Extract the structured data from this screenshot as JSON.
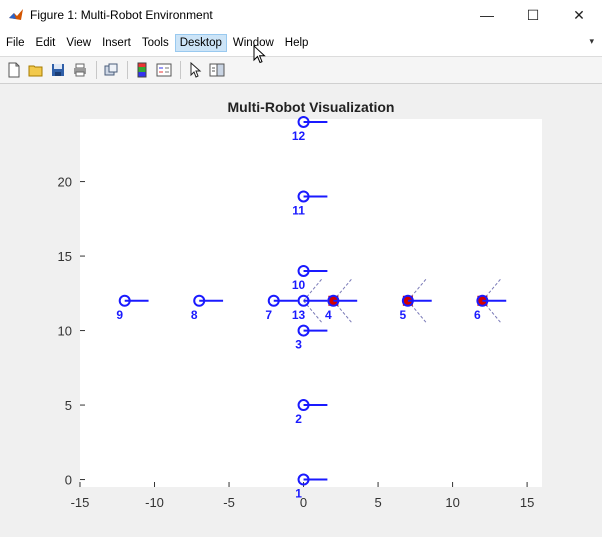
{
  "window": {
    "title": "Figure 1: Multi-Robot Environment",
    "controls": {
      "minimize": "—",
      "maximize": "☐",
      "close": "✕"
    }
  },
  "menu": {
    "items": [
      "File",
      "Edit",
      "View",
      "Insert",
      "Tools",
      "Desktop",
      "Window",
      "Help"
    ],
    "active": "Desktop",
    "overflow": "▾"
  },
  "toolbar": {
    "icons": [
      "new-figure-icon",
      "open-file-icon",
      "save-icon",
      "print-icon",
      "link-icon",
      "colorbar-icon",
      "legend-icon",
      "pointer-icon",
      "property-editor-icon"
    ]
  },
  "colors": {
    "robot": "#1a1aff",
    "goal": "#d10000",
    "axes_bg": "#ffffff",
    "figure_bg": "#f0f0f0"
  },
  "chart_data": {
    "type": "scatter",
    "title": "Multi-Robot Visualization",
    "xlabel": "",
    "ylabel": "",
    "xlim": [
      -15,
      16
    ],
    "ylim": [
      -0.5,
      24.2
    ],
    "xticks": [
      -15,
      -10,
      -5,
      0,
      5,
      10,
      15
    ],
    "yticks": [
      0,
      5,
      10,
      15,
      20
    ],
    "grid": false,
    "robots": [
      {
        "id": "1",
        "x": 0,
        "y": 0
      },
      {
        "id": "2",
        "x": 0,
        "y": 5
      },
      {
        "id": "3",
        "x": 0,
        "y": 10
      },
      {
        "id": "4",
        "x": 2,
        "y": 12
      },
      {
        "id": "5",
        "x": 7,
        "y": 12
      },
      {
        "id": "6",
        "x": 12,
        "y": 12
      },
      {
        "id": "7",
        "x": -2,
        "y": 12
      },
      {
        "id": "8",
        "x": -7,
        "y": 12
      },
      {
        "id": "9",
        "x": -12,
        "y": 12
      },
      {
        "id": "10",
        "x": 0,
        "y": 14
      },
      {
        "id": "11",
        "x": 0,
        "y": 19
      },
      {
        "id": "12",
        "x": 0,
        "y": 24
      },
      {
        "id": "13",
        "x": 0,
        "y": 12
      }
    ],
    "goals": [
      {
        "x": 2,
        "y": 12
      },
      {
        "x": 7,
        "y": 12
      },
      {
        "x": 12,
        "y": 12
      }
    ],
    "heading_length": 1.6,
    "sensor_range": {
      "radius": 2.0,
      "half_angle_deg": 50,
      "robots": [
        "4",
        "5",
        "6",
        "13"
      ]
    }
  }
}
